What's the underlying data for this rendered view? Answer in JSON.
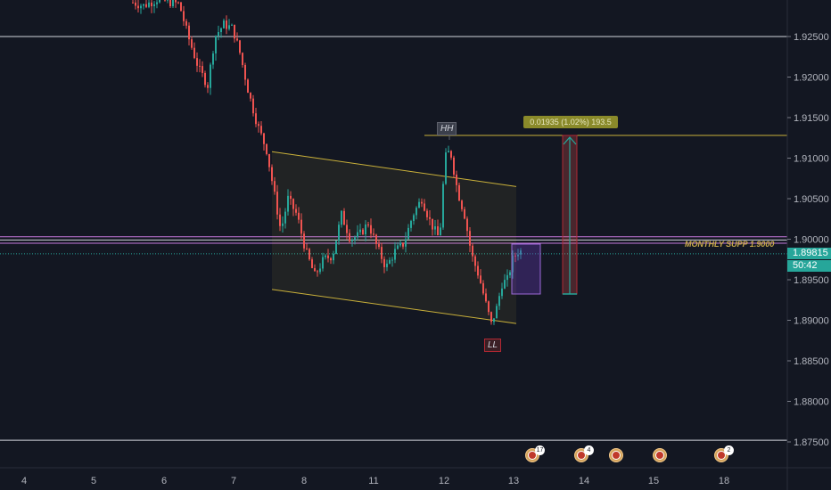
{
  "chart_data": {
    "type": "candlestick",
    "price_axis": {
      "ticks": [
        "1.92500",
        "1.92000",
        "1.91500",
        "1.91000",
        "1.90500",
        "1.90000",
        "1.89500",
        "1.89000",
        "1.88500",
        "1.88000",
        "1.87500"
      ],
      "ylim": [
        1.8735,
        1.9294
      ]
    },
    "time_axis": {
      "ticks": [
        "4",
        "5",
        "6",
        "7",
        "8",
        "11",
        "12",
        "13",
        "14",
        "15",
        "18"
      ]
    },
    "last_price": "1.89815",
    "countdown": "50:42",
    "annotations": {
      "high_label": "HH",
      "low_label": "LL",
      "measure_label": "0.01935 (1.02%) 193.5",
      "support_label": "MONTHLY SUPP 1.9000"
    },
    "horizontal_levels": [
      1.925,
      1.9003,
      1.8999,
      1.8995,
      1.8982,
      1.8752,
      1.9128
    ],
    "channel": {
      "upper": [
        [
          1.9108
        ],
        [
          1.9065
        ]
      ],
      "lower": [
        [
          1.8938
        ],
        [
          1.8896
        ]
      ]
    },
    "colors": {
      "up": "#26a69a",
      "down": "#ef5350",
      "background": "#131722",
      "channel": "#c9b03a"
    }
  },
  "events": [
    {
      "icon": "uk-flag-icon",
      "count": "17"
    },
    {
      "icon": "uk-flag-icon",
      "count": "4"
    },
    {
      "icon": "uk-flag-icon",
      "count": ""
    },
    {
      "icon": "au-flag-icon",
      "count": ""
    },
    {
      "icon": "uk-flag-icon",
      "count": "2"
    }
  ]
}
